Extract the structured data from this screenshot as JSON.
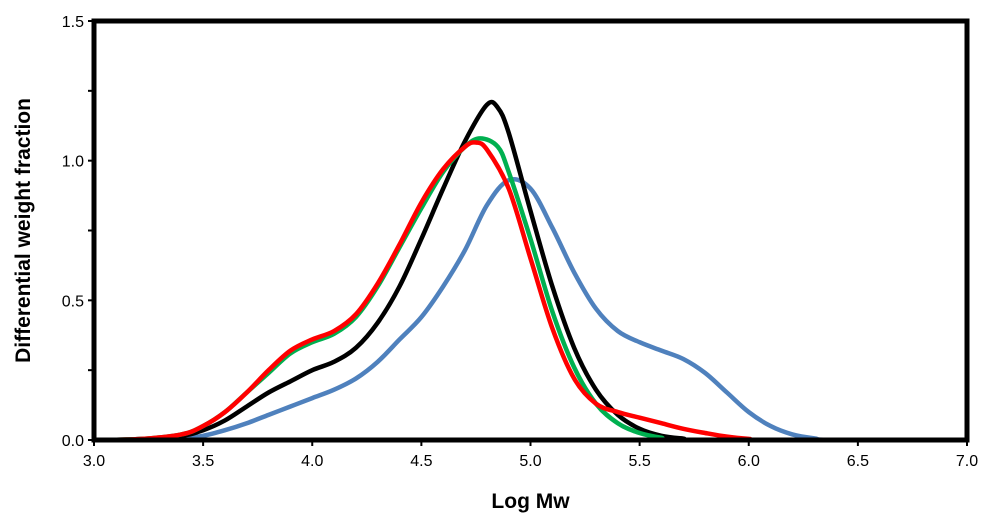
{
  "chart_data": {
    "type": "line",
    "title": "",
    "xlabel": "Log Mw",
    "ylabel": "Differential weight fraction",
    "xlim": [
      3.0,
      7.0
    ],
    "ylim": [
      0.0,
      1.5
    ],
    "xticks": [
      3.0,
      3.5,
      4.0,
      4.5,
      5.0,
      5.5,
      6.0,
      6.5,
      7.0
    ],
    "xtick_labels": [
      "3.0",
      "3.5",
      "4.0",
      "4.5",
      "5.0",
      "5.5",
      "6.0",
      "6.5",
      "7.0"
    ],
    "yticks": [
      0.0,
      0.5,
      1.0,
      1.5
    ],
    "ytick_labels": [
      "0.0",
      "0.5",
      "1.0",
      "1.5"
    ],
    "grid": false,
    "legend": "none",
    "series": [
      {
        "color": "#4f81bd",
        "points": [
          [
            3.0,
            0.0
          ],
          [
            3.2,
            0.0
          ],
          [
            3.4,
            0.005
          ],
          [
            3.5,
            0.015
          ],
          [
            3.6,
            0.035
          ],
          [
            3.7,
            0.06
          ],
          [
            3.8,
            0.09
          ],
          [
            3.9,
            0.12
          ],
          [
            4.0,
            0.15
          ],
          [
            4.1,
            0.18
          ],
          [
            4.2,
            0.22
          ],
          [
            4.3,
            0.28
          ],
          [
            4.4,
            0.36
          ],
          [
            4.5,
            0.44
          ],
          [
            4.6,
            0.55
          ],
          [
            4.7,
            0.68
          ],
          [
            4.8,
            0.84
          ],
          [
            4.9,
            0.93
          ],
          [
            5.0,
            0.9
          ],
          [
            5.1,
            0.76
          ],
          [
            5.2,
            0.6
          ],
          [
            5.3,
            0.47
          ],
          [
            5.4,
            0.39
          ],
          [
            5.5,
            0.35
          ],
          [
            5.6,
            0.32
          ],
          [
            5.7,
            0.29
          ],
          [
            5.8,
            0.24
          ],
          [
            5.9,
            0.17
          ],
          [
            6.0,
            0.1
          ],
          [
            6.1,
            0.05
          ],
          [
            6.2,
            0.02
          ],
          [
            6.3,
            0.006
          ],
          [
            6.4,
            0.0
          ],
          [
            7.0,
            0.0
          ]
        ]
      },
      {
        "color": "#000000",
        "points": [
          [
            3.0,
            0.0
          ],
          [
            3.2,
            0.003
          ],
          [
            3.4,
            0.015
          ],
          [
            3.5,
            0.035
          ],
          [
            3.6,
            0.07
          ],
          [
            3.7,
            0.12
          ],
          [
            3.8,
            0.17
          ],
          [
            3.9,
            0.21
          ],
          [
            4.0,
            0.25
          ],
          [
            4.1,
            0.28
          ],
          [
            4.2,
            0.33
          ],
          [
            4.3,
            0.42
          ],
          [
            4.4,
            0.55
          ],
          [
            4.5,
            0.72
          ],
          [
            4.6,
            0.9
          ],
          [
            4.7,
            1.07
          ],
          [
            4.8,
            1.2
          ],
          [
            4.85,
            1.19
          ],
          [
            4.9,
            1.1
          ],
          [
            5.0,
            0.82
          ],
          [
            5.1,
            0.55
          ],
          [
            5.2,
            0.33
          ],
          [
            5.3,
            0.18
          ],
          [
            5.4,
            0.09
          ],
          [
            5.5,
            0.04
          ],
          [
            5.6,
            0.015
          ],
          [
            5.7,
            0.005
          ],
          [
            5.8,
            0.0
          ],
          [
            7.0,
            0.0
          ]
        ]
      },
      {
        "color": "#00b050",
        "points": [
          [
            3.0,
            0.0
          ],
          [
            3.2,
            0.003
          ],
          [
            3.4,
            0.02
          ],
          [
            3.5,
            0.05
          ],
          [
            3.6,
            0.1
          ],
          [
            3.7,
            0.17
          ],
          [
            3.8,
            0.24
          ],
          [
            3.9,
            0.31
          ],
          [
            4.0,
            0.35
          ],
          [
            4.1,
            0.38
          ],
          [
            4.2,
            0.44
          ],
          [
            4.3,
            0.55
          ],
          [
            4.4,
            0.69
          ],
          [
            4.5,
            0.83
          ],
          [
            4.6,
            0.96
          ],
          [
            4.7,
            1.05
          ],
          [
            4.77,
            1.08
          ],
          [
            4.85,
            1.05
          ],
          [
            4.9,
            0.96
          ],
          [
            5.0,
            0.72
          ],
          [
            5.1,
            0.46
          ],
          [
            5.2,
            0.26
          ],
          [
            5.3,
            0.13
          ],
          [
            5.4,
            0.06
          ],
          [
            5.5,
            0.025
          ],
          [
            5.6,
            0.008
          ],
          [
            5.7,
            0.0
          ],
          [
            7.0,
            0.0
          ]
        ]
      },
      {
        "color": "#ff0000",
        "points": [
          [
            3.0,
            0.0
          ],
          [
            3.2,
            0.003
          ],
          [
            3.4,
            0.02
          ],
          [
            3.5,
            0.05
          ],
          [
            3.6,
            0.1
          ],
          [
            3.7,
            0.17
          ],
          [
            3.8,
            0.25
          ],
          [
            3.9,
            0.32
          ],
          [
            4.0,
            0.36
          ],
          [
            4.1,
            0.39
          ],
          [
            4.2,
            0.45
          ],
          [
            4.3,
            0.56
          ],
          [
            4.4,
            0.7
          ],
          [
            4.5,
            0.85
          ],
          [
            4.6,
            0.97
          ],
          [
            4.7,
            1.05
          ],
          [
            4.75,
            1.065
          ],
          [
            4.8,
            1.04
          ],
          [
            4.9,
            0.9
          ],
          [
            5.0,
            0.65
          ],
          [
            5.1,
            0.4
          ],
          [
            5.2,
            0.22
          ],
          [
            5.3,
            0.13
          ],
          [
            5.4,
            0.1
          ],
          [
            5.5,
            0.08
          ],
          [
            5.6,
            0.06
          ],
          [
            5.7,
            0.04
          ],
          [
            5.8,
            0.025
          ],
          [
            5.9,
            0.012
          ],
          [
            6.0,
            0.004
          ],
          [
            6.1,
            0.0
          ],
          [
            7.0,
            0.0
          ]
        ]
      }
    ]
  }
}
